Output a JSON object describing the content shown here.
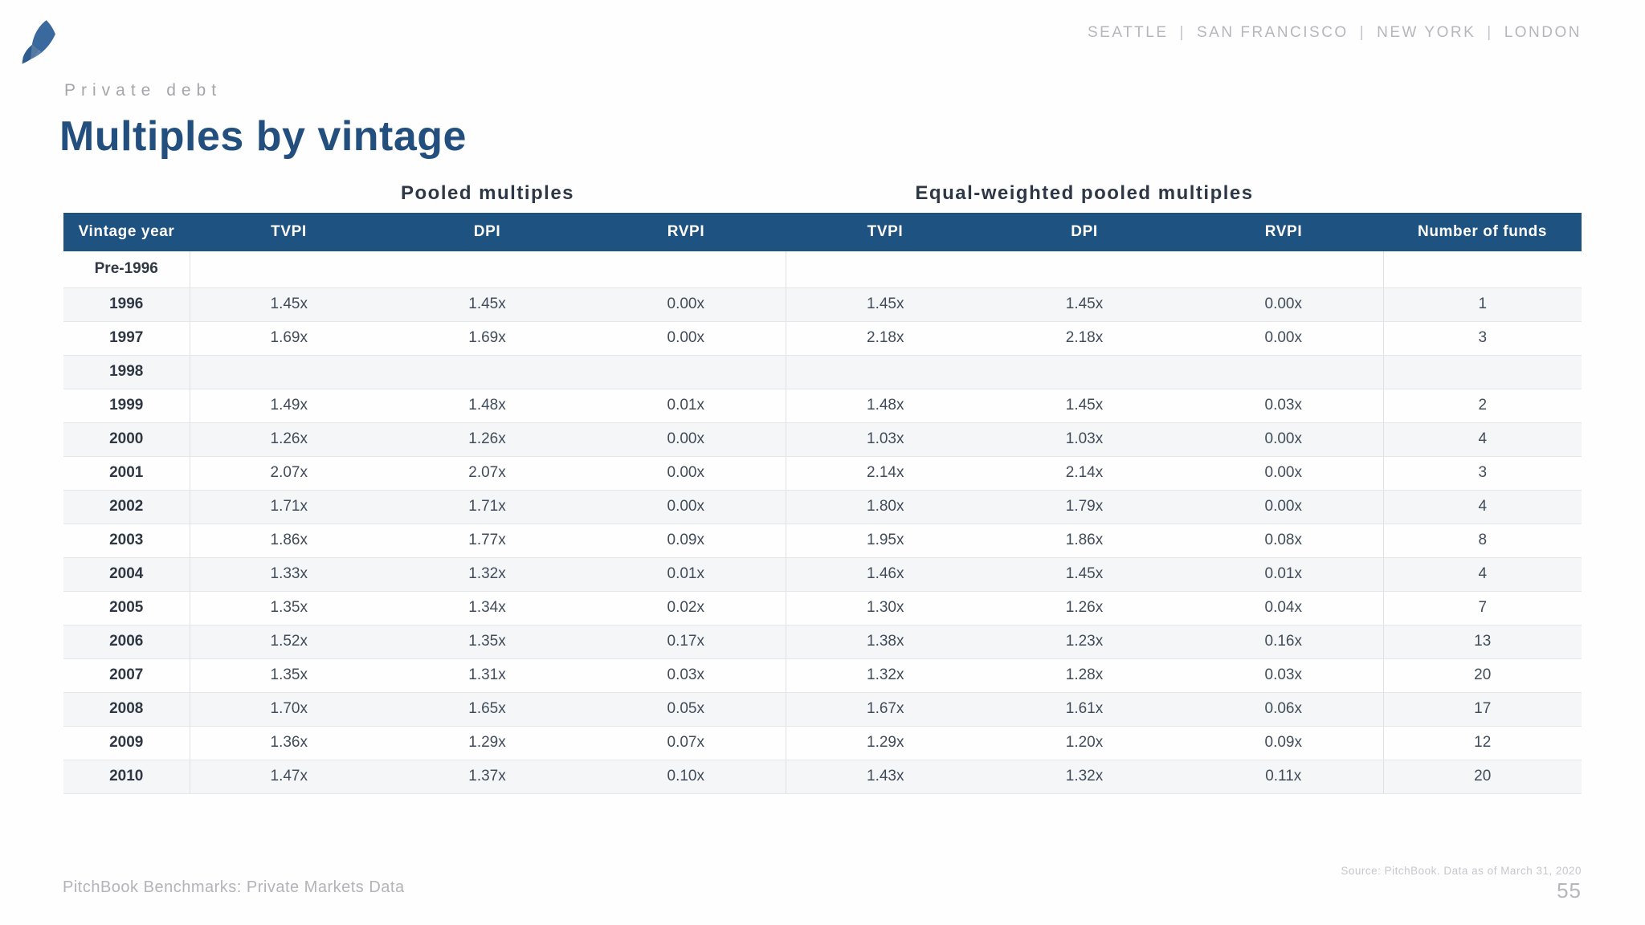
{
  "brand": {
    "cities": [
      "SEATTLE",
      "SAN FRANCISCO",
      "NEW YORK",
      "LONDON"
    ],
    "separator": "|"
  },
  "header": {
    "eyebrow": "Private debt",
    "title": "Multiples by vintage"
  },
  "table": {
    "group_headings": [
      "Pooled multiples",
      "Equal-weighted pooled multiples"
    ],
    "columns": [
      "Vintage year",
      "TVPI",
      "DPI",
      "RVPI",
      "TVPI",
      "DPI",
      "RVPI",
      "Number of funds"
    ],
    "rows": [
      {
        "year": "Pre-1996",
        "pooled": [
          "",
          "",
          ""
        ],
        "equal": [
          "",
          "",
          ""
        ],
        "funds": ""
      },
      {
        "year": "1996",
        "pooled": [
          "1.45x",
          "1.45x",
          "0.00x"
        ],
        "equal": [
          "1.45x",
          "1.45x",
          "0.00x"
        ],
        "funds": "1"
      },
      {
        "year": "1997",
        "pooled": [
          "1.69x",
          "1.69x",
          "0.00x"
        ],
        "equal": [
          "2.18x",
          "2.18x",
          "0.00x"
        ],
        "funds": "3"
      },
      {
        "year": "1998",
        "pooled": [
          "",
          "",
          ""
        ],
        "equal": [
          "",
          "",
          ""
        ],
        "funds": ""
      },
      {
        "year": "1999",
        "pooled": [
          "1.49x",
          "1.48x",
          "0.01x"
        ],
        "equal": [
          "1.48x",
          "1.45x",
          "0.03x"
        ],
        "funds": "2"
      },
      {
        "year": "2000",
        "pooled": [
          "1.26x",
          "1.26x",
          "0.00x"
        ],
        "equal": [
          "1.03x",
          "1.03x",
          "0.00x"
        ],
        "funds": "4"
      },
      {
        "year": "2001",
        "pooled": [
          "2.07x",
          "2.07x",
          "0.00x"
        ],
        "equal": [
          "2.14x",
          "2.14x",
          "0.00x"
        ],
        "funds": "3"
      },
      {
        "year": "2002",
        "pooled": [
          "1.71x",
          "1.71x",
          "0.00x"
        ],
        "equal": [
          "1.80x",
          "1.79x",
          "0.00x"
        ],
        "funds": "4"
      },
      {
        "year": "2003",
        "pooled": [
          "1.86x",
          "1.77x",
          "0.09x"
        ],
        "equal": [
          "1.95x",
          "1.86x",
          "0.08x"
        ],
        "funds": "8"
      },
      {
        "year": "2004",
        "pooled": [
          "1.33x",
          "1.32x",
          "0.01x"
        ],
        "equal": [
          "1.46x",
          "1.45x",
          "0.01x"
        ],
        "funds": "4"
      },
      {
        "year": "2005",
        "pooled": [
          "1.35x",
          "1.34x",
          "0.02x"
        ],
        "equal": [
          "1.30x",
          "1.26x",
          "0.04x"
        ],
        "funds": "7"
      },
      {
        "year": "2006",
        "pooled": [
          "1.52x",
          "1.35x",
          "0.17x"
        ],
        "equal": [
          "1.38x",
          "1.23x",
          "0.16x"
        ],
        "funds": "13"
      },
      {
        "year": "2007",
        "pooled": [
          "1.35x",
          "1.31x",
          "0.03x"
        ],
        "equal": [
          "1.32x",
          "1.28x",
          "0.03x"
        ],
        "funds": "20"
      },
      {
        "year": "2008",
        "pooled": [
          "1.70x",
          "1.65x",
          "0.05x"
        ],
        "equal": [
          "1.67x",
          "1.61x",
          "0.06x"
        ],
        "funds": "17"
      },
      {
        "year": "2009",
        "pooled": [
          "1.36x",
          "1.29x",
          "0.07x"
        ],
        "equal": [
          "1.29x",
          "1.20x",
          "0.09x"
        ],
        "funds": "12"
      },
      {
        "year": "2010",
        "pooled": [
          "1.47x",
          "1.37x",
          "0.10x"
        ],
        "equal": [
          "1.43x",
          "1.32x",
          "0.11x"
        ],
        "funds": "20"
      }
    ]
  },
  "footer": {
    "left": "PitchBook Benchmarks: Private Markets Data",
    "source": "Source: PitchBook. Data as of March 31, 2020",
    "page": "55"
  },
  "colors": {
    "header_bar": "#1e5280",
    "title": "#234f7e",
    "heading_text": "#2d3745",
    "shaded_row": "#f5f6f8",
    "logo_light": "#3a6a9d",
    "logo_dark": "#2e5c8e"
  }
}
